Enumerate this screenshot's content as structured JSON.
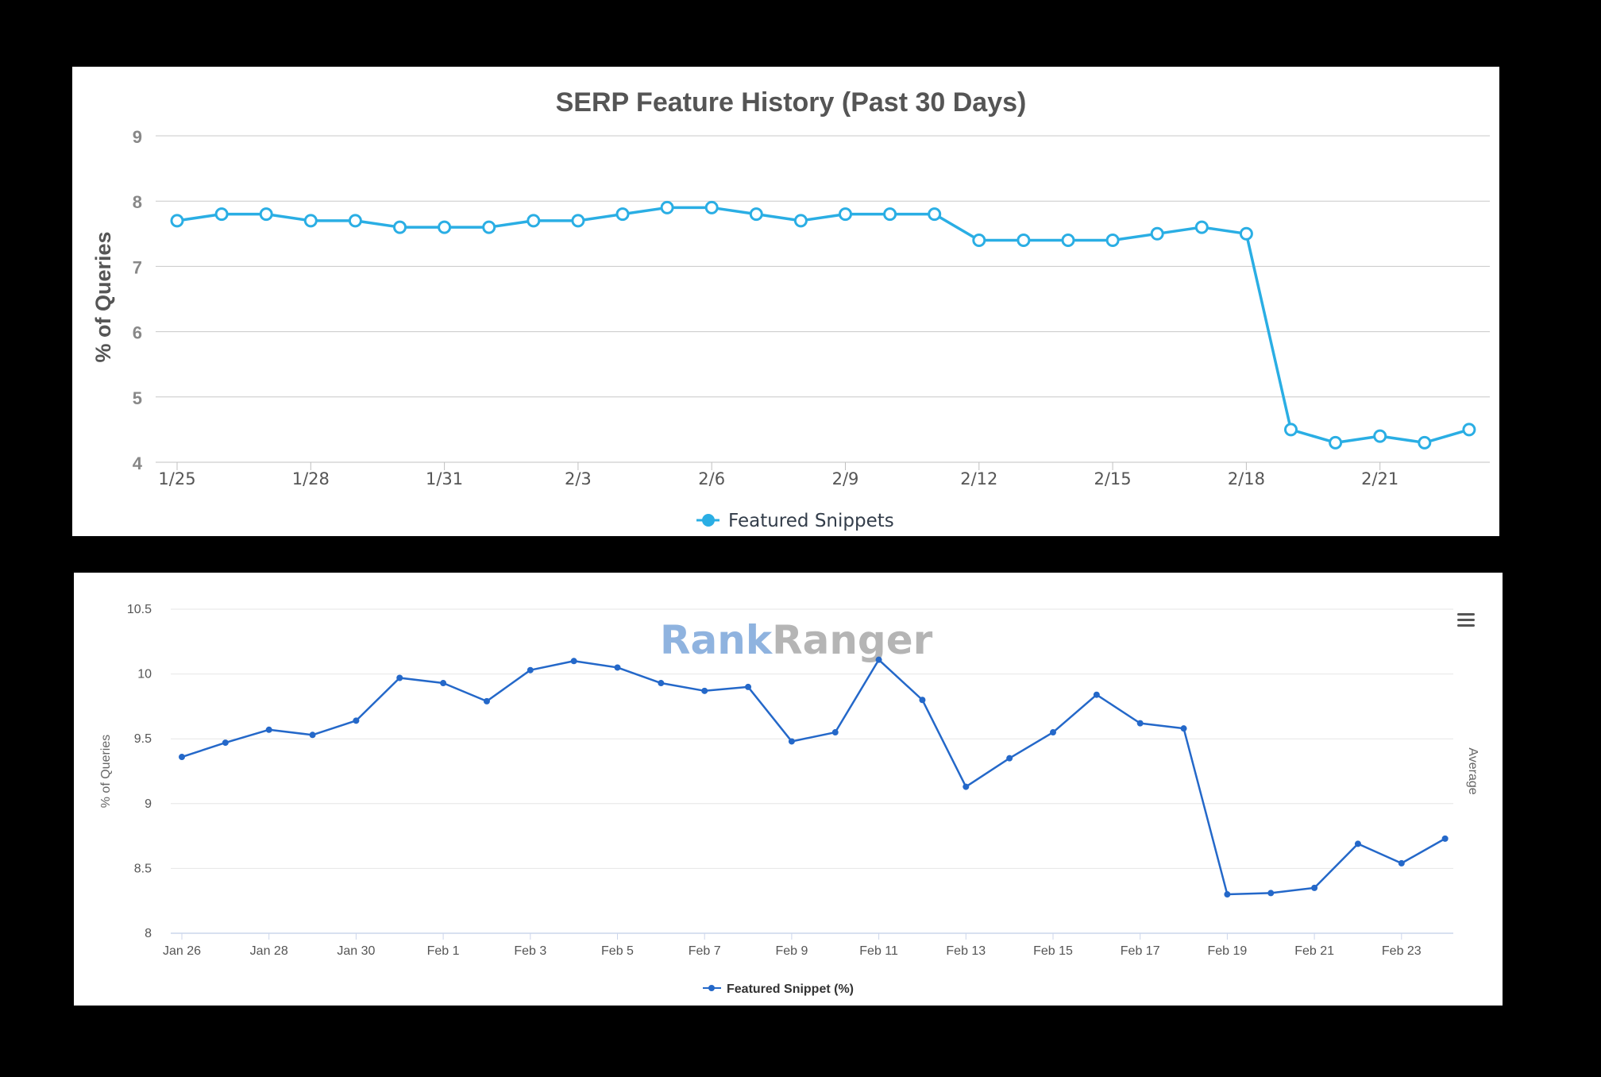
{
  "chart_data": [
    {
      "type": "line",
      "title": "SERP Feature History (Past 30 Days)",
      "ylabel": "% of Queries",
      "ylim": [
        4,
        9
      ],
      "yticks": [
        "9",
        "8",
        "7",
        "6",
        "5",
        "4"
      ],
      "x_tick_labels": [
        "1/25",
        "1/28",
        "1/31",
        "2/3",
        "2/6",
        "2/9",
        "2/12",
        "2/15",
        "2/18",
        "2/21"
      ],
      "x_tick_index": [
        0,
        3,
        6,
        9,
        12,
        15,
        18,
        21,
        24,
        27
      ],
      "legend": "bottom-center",
      "grid": true,
      "series": [
        {
          "name": "Featured Snippets",
          "color": "#2aaee4",
          "values": [
            7.7,
            7.8,
            7.8,
            7.7,
            7.7,
            7.6,
            7.6,
            7.6,
            7.7,
            7.7,
            7.8,
            7.9,
            7.9,
            7.8,
            7.7,
            7.8,
            7.8,
            7.8,
            7.4,
            7.4,
            7.4,
            7.4,
            7.5,
            7.6,
            7.5,
            4.5,
            4.3,
            4.4,
            4.3,
            4.5
          ]
        }
      ]
    },
    {
      "type": "line",
      "ylabel": "% of Queries",
      "right_axis_label": "Average",
      "ylim": [
        8,
        10.5
      ],
      "yticks": [
        "10.5",
        "10",
        "9.5",
        "9",
        "8.5",
        "8"
      ],
      "x_tick_labels": [
        "Jan 26",
        "Jan 28",
        "Jan 30",
        "Feb 1",
        "Feb 3",
        "Feb 5",
        "Feb 7",
        "Feb 9",
        "Feb 11",
        "Feb 13",
        "Feb 15",
        "Feb 17",
        "Feb 19",
        "Feb 21",
        "Feb 23"
      ],
      "x_tick_index": [
        0,
        2,
        4,
        6,
        8,
        10,
        12,
        14,
        16,
        18,
        20,
        22,
        24,
        26,
        28
      ],
      "legend": "bottom-center",
      "grid": true,
      "watermark": "RankRanger",
      "menu_icon": "hamburger-menu-icon",
      "series": [
        {
          "name": "Featured Snippet (%)",
          "color": "#2468c9",
          "values": [
            9.36,
            9.47,
            9.57,
            9.53,
            9.64,
            9.97,
            9.93,
            9.79,
            10.03,
            10.1,
            10.05,
            9.93,
            9.87,
            9.9,
            9.48,
            9.55,
            10.11,
            9.8,
            9.13,
            9.35,
            9.55,
            9.84,
            9.62,
            9.58,
            8.3,
            8.31,
            8.35,
            8.69,
            8.54,
            8.73
          ]
        }
      ]
    }
  ]
}
